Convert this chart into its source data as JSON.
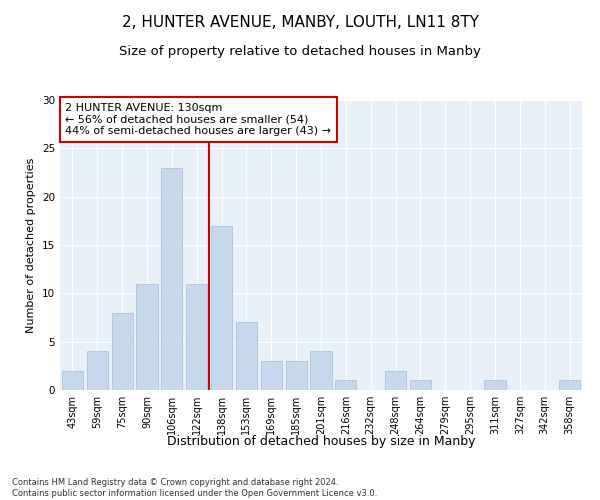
{
  "title": "2, HUNTER AVENUE, MANBY, LOUTH, LN11 8TY",
  "subtitle": "Size of property relative to detached houses in Manby",
  "xlabel": "Distribution of detached houses by size in Manby",
  "ylabel": "Number of detached properties",
  "categories": [
    "43sqm",
    "59sqm",
    "75sqm",
    "90sqm",
    "106sqm",
    "122sqm",
    "138sqm",
    "153sqm",
    "169sqm",
    "185sqm",
    "201sqm",
    "216sqm",
    "232sqm",
    "248sqm",
    "264sqm",
    "279sqm",
    "295sqm",
    "311sqm",
    "327sqm",
    "342sqm",
    "358sqm"
  ],
  "values": [
    2,
    4,
    8,
    11,
    23,
    11,
    17,
    7,
    3,
    3,
    4,
    1,
    0,
    2,
    1,
    0,
    0,
    1,
    0,
    0,
    1
  ],
  "bar_color": "#c5d8ed",
  "bar_edgecolor": "#a0bcd8",
  "vline_x": 5.5,
  "vline_color": "#cc0000",
  "annotation_text": "2 HUNTER AVENUE: 130sqm\n← 56% of detached houses are smaller (54)\n44% of semi-detached houses are larger (43) →",
  "annotation_box_color": "#ffffff",
  "annotation_box_edgecolor": "#cc0000",
  "ylim": [
    0,
    30
  ],
  "yticks": [
    0,
    5,
    10,
    15,
    20,
    25,
    30
  ],
  "background_color": "#e8f0f8",
  "footer1": "Contains HM Land Registry data © Crown copyright and database right 2024.",
  "footer2": "Contains public sector information licensed under the Open Government Licence v3.0.",
  "title_fontsize": 11,
  "subtitle_fontsize": 9.5,
  "tick_fontsize": 7,
  "ylabel_fontsize": 8,
  "xlabel_fontsize": 9,
  "annotation_fontsize": 8,
  "footer_fontsize": 6
}
